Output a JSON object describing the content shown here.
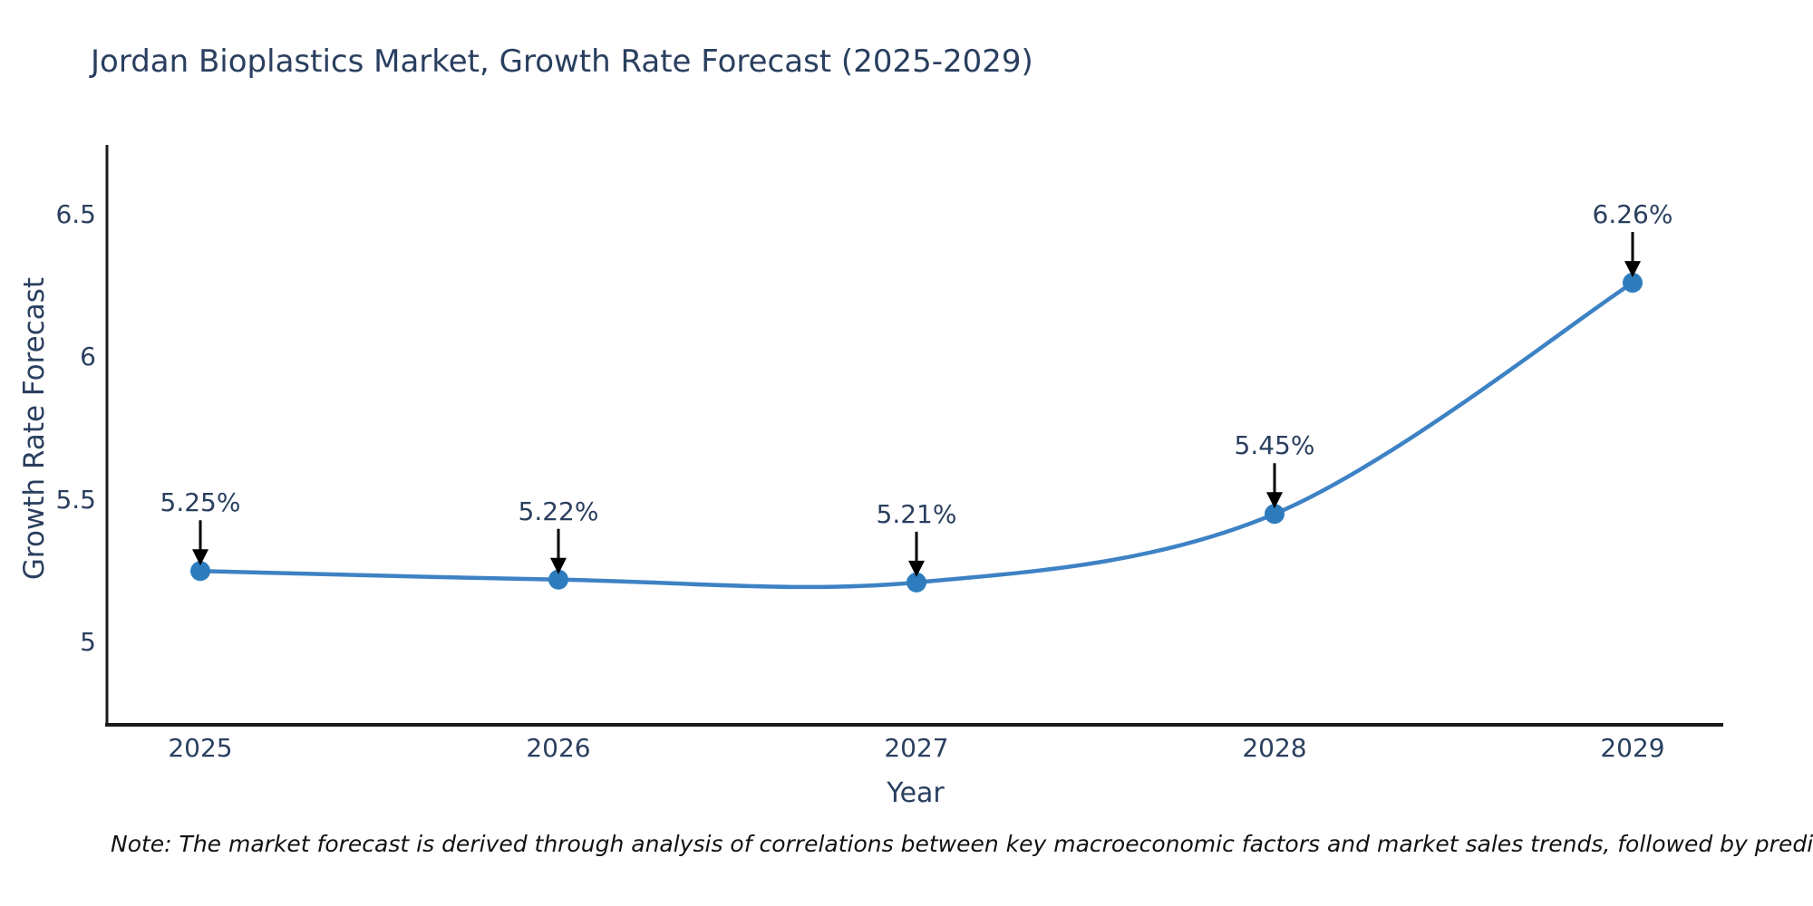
{
  "title": "Jordan Bioplastics Market, Growth Rate Forecast (2025-2029)",
  "note": "Note: The market forecast is derived through analysis of correlations between key macroeconomic factors and market sales trends, followed by predictive modeling to project future sales",
  "chart_data": {
    "type": "line",
    "line_shape": "spline",
    "title": "Jordan Bioplastics Market, Growth Rate Forecast (2025-2029)",
    "xlabel": "Year",
    "ylabel": "Growth Rate Forecast",
    "x": [
      2025,
      2026,
      2027,
      2028,
      2029
    ],
    "values": [
      5.25,
      5.22,
      5.21,
      5.45,
      6.26
    ],
    "point_labels": [
      "5.25%",
      "5.22%",
      "5.21%",
      "5.45%",
      "6.26%"
    ],
    "xtick_labels": [
      "2025",
      "2026",
      "2027",
      "2028",
      "2029"
    ],
    "yticks": [
      5,
      5.5,
      6,
      6.5
    ],
    "ytick_labels": [
      "5",
      "5.5",
      "6",
      "6.5"
    ],
    "ylim": [
      4.71,
      6.85
    ],
    "grid": false,
    "legend": "none",
    "annotations_style": "value label above point with downward black arrow",
    "colors": {
      "line": "#3d82c4",
      "marker": "#2e7cbe",
      "text": "#2a3f5f",
      "arrow": "#000000",
      "axis": "#1a1a1a"
    }
  }
}
